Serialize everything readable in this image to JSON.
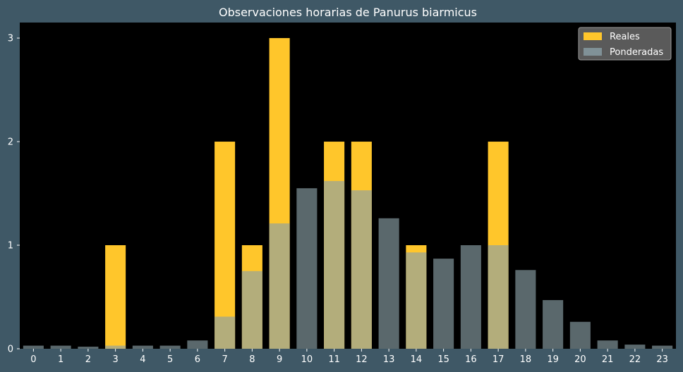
{
  "chart_data": {
    "type": "bar",
    "title": "Observaciones horarias de Panurus biarmicus",
    "xlabel": "",
    "ylabel": "",
    "categories": [
      "0",
      "1",
      "2",
      "3",
      "4",
      "5",
      "6",
      "7",
      "8",
      "9",
      "10",
      "11",
      "12",
      "13",
      "14",
      "15",
      "16",
      "17",
      "18",
      "19",
      "20",
      "21",
      "22",
      "23"
    ],
    "series": [
      {
        "name": "Reales",
        "color": "#ffc62b",
        "values": [
          0,
          0,
          0,
          1,
          0,
          0,
          0,
          2,
          1,
          3,
          0,
          2,
          2,
          0,
          1,
          0,
          0,
          2,
          0,
          0,
          0,
          0,
          0,
          0
        ]
      },
      {
        "name": "Ponderadas",
        "color": "#8a9fa6",
        "values": [
          0.03,
          0.03,
          0.02,
          0.03,
          0.03,
          0.03,
          0.08,
          0.31,
          0.75,
          1.21,
          1.55,
          1.62,
          1.53,
          1.26,
          0.93,
          0.87,
          1.0,
          1.0,
          0.76,
          0.47,
          0.26,
          0.08,
          0.04,
          0.03
        ]
      }
    ],
    "yticks": [
      "0",
      "1",
      "2",
      "3"
    ],
    "ylim": [
      0,
      3.15
    ],
    "grid": false,
    "legend_position": "top-right",
    "background": "#000000",
    "figure_background": "#3f5866"
  }
}
